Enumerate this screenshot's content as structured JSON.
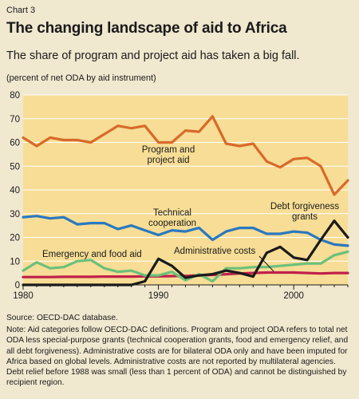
{
  "header": {
    "chart_label": "Chart 3",
    "title": "The changing landscape of aid to Africa",
    "subtitle": "The share of program and project aid has taken a big fall."
  },
  "footer": {
    "source": "Source: OECD-DAC database.",
    "note": "Note: Aid categories follow OECD-DAC definitions. Program and project ODA refers to total net ODA less special-purpose grants (technical cooperation grants, food and emergency relief, and all debt forgiveness). Administrative costs are for bilateral ODA only and have been imputed for Africa based on global levels. Administrative costs are not reported by multilateral agencies. Debt relief before 1988 was small (less than 1 percent of ODA) and cannot be distinguished by recipient region."
  },
  "chart_data": {
    "type": "line",
    "ylabel": "(percent of net ODA by aid instrument)",
    "xlim": [
      1980,
      2004
    ],
    "ylim": [
      0,
      80
    ],
    "x_ticks": [
      1980,
      1990,
      2000
    ],
    "y_ticks": [
      0,
      10,
      20,
      30,
      40,
      50,
      60,
      70,
      80
    ],
    "grid": true,
    "plot_background": "#f7dd95",
    "series": [
      {
        "name": "Program and project aid",
        "label": [
          "Program and",
          "project aid"
        ],
        "color": "#d86a2a",
        "x": [
          1980,
          1981,
          1982,
          1983,
          1984,
          1985,
          1986,
          1987,
          1988,
          1989,
          1990,
          1991,
          1992,
          1993,
          1994,
          1995,
          1996,
          1997,
          1998,
          1999,
          2000,
          2001,
          2002,
          2003,
          2004
        ],
        "y": [
          62,
          58.5,
          62,
          61,
          61,
          60,
          63.5,
          67,
          66,
          67,
          60,
          60,
          65,
          64.5,
          71,
          59.5,
          58.5,
          59.5,
          52,
          49.5,
          53,
          53.5,
          50,
          38,
          44
        ]
      },
      {
        "name": "Technical cooperation",
        "label": [
          "Technical",
          "cooperation"
        ],
        "color": "#2a78c0",
        "x": [
          1980,
          1981,
          1982,
          1983,
          1984,
          1985,
          1986,
          1987,
          1988,
          1989,
          1990,
          1991,
          1992,
          1993,
          1994,
          1995,
          1996,
          1997,
          1998,
          1999,
          2000,
          2001,
          2002,
          2003,
          2004
        ],
        "y": [
          28.5,
          29,
          28,
          28.5,
          25.5,
          26,
          26,
          23.5,
          25,
          23,
          21,
          23,
          22.5,
          24,
          19,
          22.5,
          24,
          24,
          21.5,
          21.5,
          22.5,
          22,
          19,
          17,
          16.5
        ]
      },
      {
        "name": "Debt forgiveness grants",
        "label": [
          "Debt forgiveness",
          "grants"
        ],
        "color": "#1a1a1a",
        "x": [
          1980,
          1981,
          1982,
          1983,
          1984,
          1985,
          1986,
          1987,
          1988,
          1989,
          1990,
          1991,
          1992,
          1993,
          1994,
          1995,
          1996,
          1997,
          1998,
          1999,
          2000,
          2001,
          2002,
          2003,
          2004
        ],
        "y": [
          0,
          0,
          0,
          0,
          0,
          0,
          0,
          0,
          0,
          1.5,
          11,
          8,
          3,
          4,
          4.5,
          6,
          5,
          3.5,
          13.5,
          16,
          11.5,
          10.5,
          19,
          27,
          20
        ]
      },
      {
        "name": "Emergency and food aid",
        "label": [
          "Emergency and food aid"
        ],
        "color": "#6cc07a",
        "x": [
          1980,
          1981,
          1982,
          1983,
          1984,
          1985,
          1986,
          1987,
          1988,
          1989,
          1990,
          1991,
          1992,
          1993,
          1994,
          1995,
          1996,
          1997,
          1998,
          1999,
          2000,
          2001,
          2002,
          2003,
          2004
        ],
        "y": [
          6,
          9.5,
          7,
          7.5,
          10,
          10.5,
          7,
          5.5,
          6,
          4,
          4,
          5.5,
          2,
          4.5,
          1.5,
          7,
          7,
          7.5,
          7.5,
          8,
          8.5,
          9,
          9,
          12.5,
          14
        ]
      },
      {
        "name": "Administrative costs",
        "label": [
          "Administrative costs"
        ],
        "color": "#c0204a",
        "x": [
          1980,
          1981,
          1982,
          1983,
          1984,
          1985,
          1986,
          1987,
          1988,
          1989,
          1990,
          1991,
          1992,
          1993,
          1994,
          1995,
          1996,
          1997,
          1998,
          1999,
          2000,
          2001,
          2002,
          2003,
          2004
        ],
        "y": [
          3.3,
          3.3,
          3.3,
          3.4,
          3.4,
          3.4,
          3.5,
          3.5,
          3.5,
          3.6,
          3.6,
          3.7,
          3.8,
          4,
          4.2,
          4.5,
          4.8,
          5,
          5.2,
          5.2,
          5.2,
          5,
          4.8,
          5,
          5
        ]
      }
    ]
  }
}
